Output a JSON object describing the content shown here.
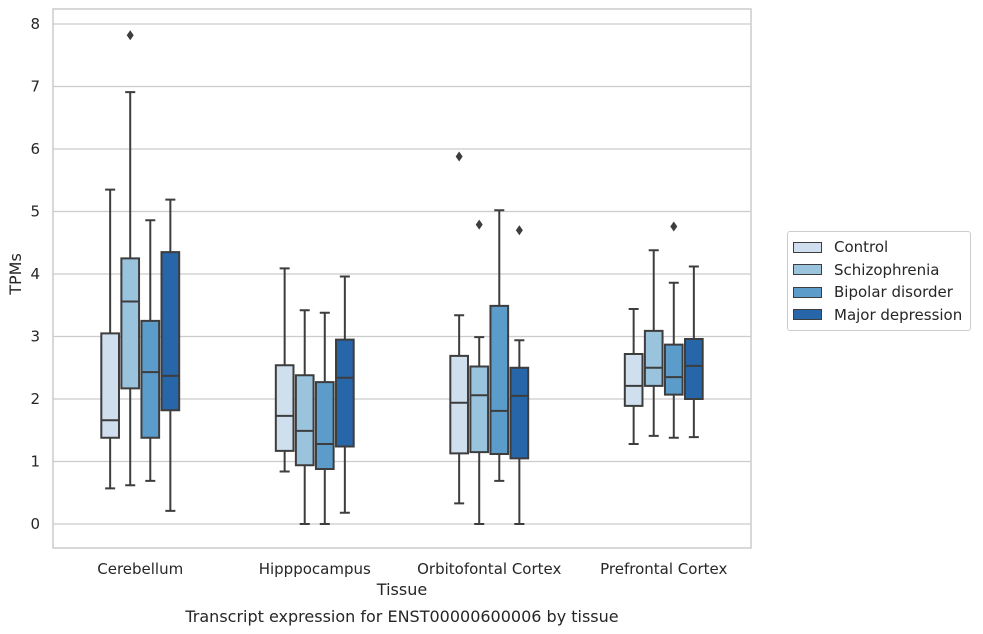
{
  "chart_data": {
    "type": "box",
    "title": "Transcript expression for ENST00000600006 by tissue",
    "xlabel": "Tissue",
    "ylabel": "TPMs",
    "ylim": [
      -0.38,
      8.22
    ],
    "yticks": [
      0,
      1,
      2,
      3,
      4,
      5,
      6,
      7,
      8
    ],
    "grid": "horizontal",
    "legend_position": "right",
    "categories": [
      "Cerebellum",
      "Hipppocampus",
      "Orbitofontal Cortex",
      "Prefrontal Cortex"
    ],
    "series": [
      {
        "name": "Control",
        "color": "#d0dfee",
        "boxes": [
          {
            "whisker_low": 0.57,
            "q1": 1.38,
            "median": 1.66,
            "q3": 3.05,
            "whisker_high": 5.35,
            "outliers": []
          },
          {
            "whisker_low": 0.84,
            "q1": 1.17,
            "median": 1.73,
            "q3": 2.54,
            "whisker_high": 4.09,
            "outliers": []
          },
          {
            "whisker_low": 0.33,
            "q1": 1.13,
            "median": 1.94,
            "q3": 2.69,
            "whisker_high": 3.34,
            "outliers": [
              5.88
            ]
          },
          {
            "whisker_low": 1.28,
            "q1": 1.89,
            "median": 2.21,
            "q3": 2.72,
            "whisker_high": 3.44,
            "outliers": []
          }
        ]
      },
      {
        "name": "Schizophrenia",
        "color": "#9ac3de",
        "boxes": [
          {
            "whisker_low": 0.62,
            "q1": 2.17,
            "median": 3.56,
            "q3": 4.25,
            "whisker_high": 6.91,
            "outliers": [
              7.82
            ]
          },
          {
            "whisker_low": 0.0,
            "q1": 0.94,
            "median": 1.49,
            "q3": 2.38,
            "whisker_high": 3.42,
            "outliers": []
          },
          {
            "whisker_low": 0.0,
            "q1": 1.15,
            "median": 2.06,
            "q3": 2.52,
            "whisker_high": 2.99,
            "outliers": [
              4.79
            ]
          },
          {
            "whisker_low": 1.41,
            "q1": 2.21,
            "median": 2.5,
            "q3": 3.09,
            "whisker_high": 4.38,
            "outliers": []
          }
        ]
      },
      {
        "name": "Bipolar disorder",
        "color": "#5b9ccb",
        "boxes": [
          {
            "whisker_low": 0.69,
            "q1": 1.38,
            "median": 2.43,
            "q3": 3.25,
            "whisker_high": 4.86,
            "outliers": []
          },
          {
            "whisker_low": 0.0,
            "q1": 0.88,
            "median": 1.28,
            "q3": 2.27,
            "whisker_high": 3.38,
            "outliers": []
          },
          {
            "whisker_low": 0.69,
            "q1": 1.12,
            "median": 1.81,
            "q3": 3.49,
            "whisker_high": 5.02,
            "outliers": []
          },
          {
            "whisker_low": 1.38,
            "q1": 2.07,
            "median": 2.35,
            "q3": 2.87,
            "whisker_high": 3.86,
            "outliers": [
              4.76
            ]
          }
        ]
      },
      {
        "name": "Major depression",
        "color": "#2766a8",
        "boxes": [
          {
            "whisker_low": 0.21,
            "q1": 1.82,
            "median": 2.37,
            "q3": 4.35,
            "whisker_high": 5.19,
            "outliers": []
          },
          {
            "whisker_low": 0.18,
            "q1": 1.24,
            "median": 2.34,
            "q3": 2.95,
            "whisker_high": 3.96,
            "outliers": []
          },
          {
            "whisker_low": 0.0,
            "q1": 1.05,
            "median": 2.05,
            "q3": 2.5,
            "whisker_high": 2.94,
            "outliers": [
              4.7
            ]
          },
          {
            "whisker_low": 1.39,
            "q1": 2.0,
            "median": 2.53,
            "q3": 2.96,
            "whisker_high": 4.12,
            "outliers": []
          }
        ]
      }
    ]
  }
}
